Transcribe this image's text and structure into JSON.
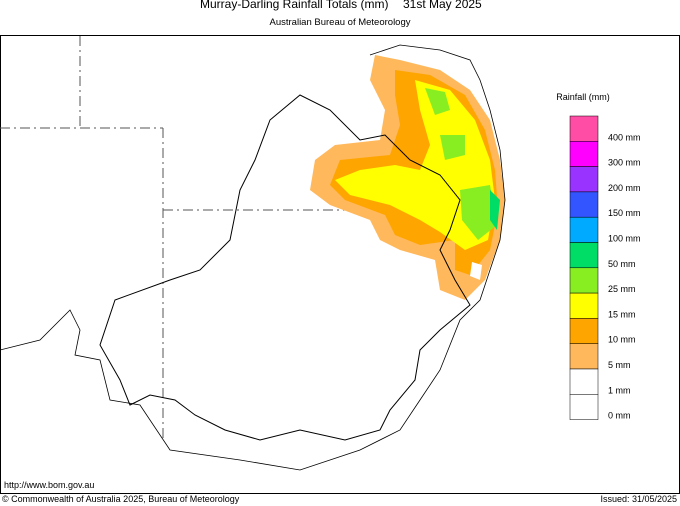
{
  "header": {
    "title": "Murray-Darling Rainfall Totals (mm)",
    "date": "31st May 2025",
    "subtitle": "Australian Bureau of Meteorology"
  },
  "legend": {
    "title": "Rainfall (mm)",
    "items": [
      {
        "label": "400 mm",
        "color": "#ff4da6"
      },
      {
        "label": "300 mm",
        "color": "#ff00ff"
      },
      {
        "label": "200 mm",
        "color": "#9933ff"
      },
      {
        "label": "150 mm",
        "color": "#3355ff"
      },
      {
        "label": "100 mm",
        "color": "#00aaff"
      },
      {
        "label": "50 mm",
        "color": "#00dd66"
      },
      {
        "label": "25 mm",
        "color": "#88ee22"
      },
      {
        "label": "15 mm",
        "color": "#ffff00"
      },
      {
        "label": "10 mm",
        "color": "#ffa500"
      },
      {
        "label": "5 mm",
        "color": "#ffb85c"
      },
      {
        "label": "1 mm",
        "color": "#ffffff"
      },
      {
        "label": "0 mm",
        "color": "#ffffff"
      }
    ]
  },
  "footer": {
    "url": "http://www.bom.gov.au",
    "copyright": "© Commonwealth of Australia 2025, Bureau of Meteorology",
    "issued": "Issued: 31/05/2025"
  }
}
